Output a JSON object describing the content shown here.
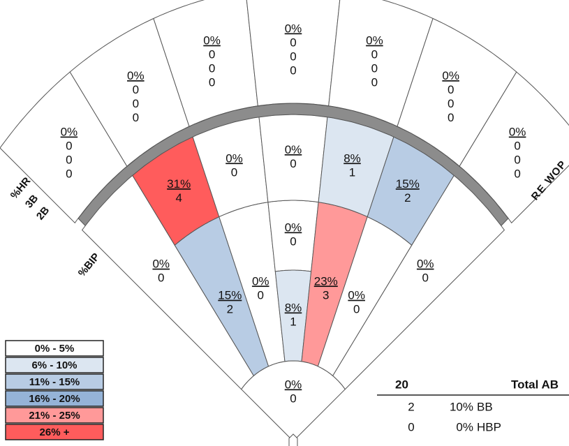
{
  "spray_chart": {
    "home_zone": [
      {
        "pct": "0%",
        "counts": [
          0
        ],
        "color": "#ffffff"
      }
    ],
    "infield_side": [
      {
        "pct": "0%",
        "counts": [
          0
        ],
        "color": "#ffffff"
      },
      {
        "pct": "0%",
        "counts": [
          0
        ],
        "color": "#ffffff"
      }
    ],
    "infield_inner": [
      {
        "pct": "15%",
        "counts": [
          2
        ],
        "color": "#b8cce4"
      },
      {
        "pct": "0%",
        "counts": [
          0
        ],
        "color": "#ffffff"
      },
      {
        "pct": "8%",
        "counts": [
          1
        ],
        "color": "#dce6f1"
      },
      {
        "pct": "23%",
        "counts": [
          3
        ],
        "color": "#ff9999"
      },
      {
        "pct": "0%",
        "counts": [
          0
        ],
        "color": "#ffffff"
      }
    ],
    "infield_center_upper": [
      {
        "pct": "0%",
        "counts": [
          0
        ],
        "color": "#ffffff"
      }
    ],
    "shallow_outfield": [
      {
        "pct": "31%",
        "counts": [
          4
        ],
        "color": "#ff5c5c"
      },
      {
        "pct": "0%",
        "counts": [
          0
        ],
        "color": "#ffffff"
      },
      {
        "pct": "0%",
        "counts": [
          0
        ],
        "color": "#ffffff"
      },
      {
        "pct": "8%",
        "counts": [
          1
        ],
        "color": "#dce6f1"
      },
      {
        "pct": "15%",
        "counts": [
          2
        ],
        "color": "#b8cce4"
      }
    ],
    "deep_outfield": [
      {
        "pct": "0%",
        "counts": [
          0,
          0,
          0
        ],
        "color": "#ffffff"
      },
      {
        "pct": "0%",
        "counts": [
          0,
          0,
          0
        ],
        "color": "#ffffff"
      },
      {
        "pct": "0%",
        "counts": [
          0,
          0,
          0
        ],
        "color": "#ffffff"
      },
      {
        "pct": "0%",
        "counts": [
          0,
          0,
          0
        ],
        "color": "#ffffff"
      },
      {
        "pct": "0%",
        "counts": [
          0,
          0,
          0
        ],
        "color": "#ffffff"
      },
      {
        "pct": "0%",
        "counts": [
          0,
          0,
          0
        ],
        "color": "#ffffff"
      },
      {
        "pct": "0%",
        "counts": [
          0,
          0,
          0
        ],
        "color": "#ffffff"
      }
    ],
    "left_labels": [
      "%HR",
      "3B",
      "2B"
    ],
    "bip_label": "%BIP",
    "right_label": "POWER"
  },
  "legend": [
    {
      "label": "0% - 5%",
      "color": "#ffffff"
    },
    {
      "label": "6% - 10%",
      "color": "#dce6f1"
    },
    {
      "label": "11% - 15%",
      "color": "#b8cce4"
    },
    {
      "label": "16% - 20%",
      "color": "#95b3d7"
    },
    {
      "label": "21% - 25%",
      "color": "#ff9999"
    },
    {
      "label": "26% +",
      "color": "#ff5c5c"
    }
  ],
  "summary": {
    "total": 20,
    "total_label": "Total AB",
    "rows": [
      {
        "count": 2,
        "pct": "10%",
        "label": "BB"
      },
      {
        "count": 0,
        "pct": "0%",
        "label": "HBP"
      }
    ]
  }
}
